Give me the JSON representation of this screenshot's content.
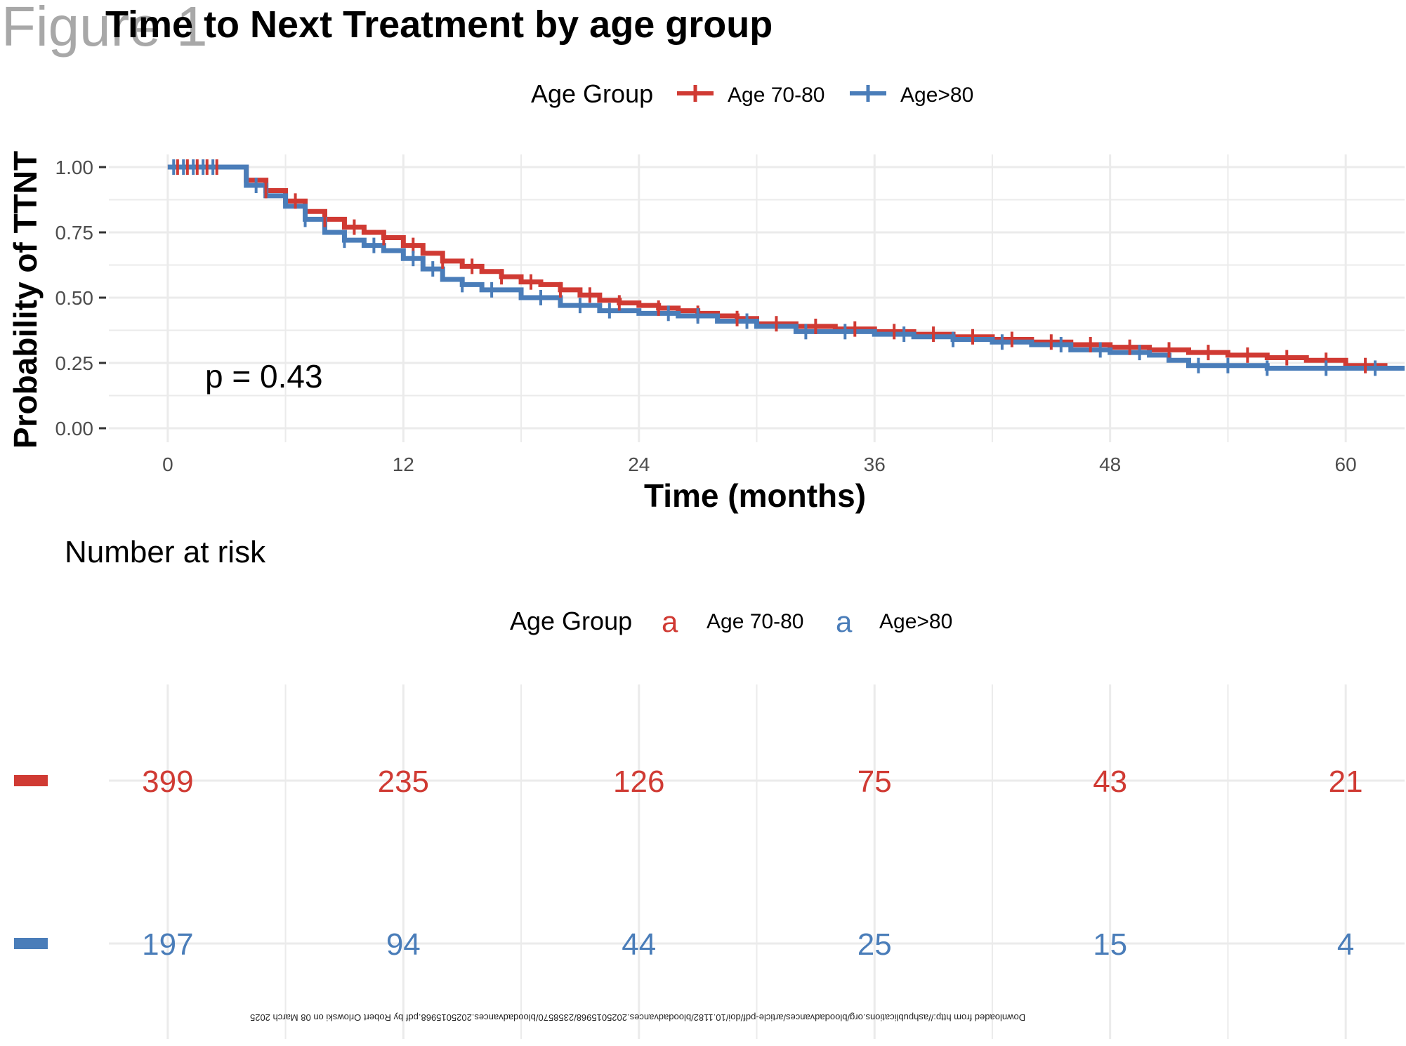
{
  "figure_label": "Figure 1",
  "title": "Time to Next Treatment by age group",
  "colors": {
    "age_70_80": "#d03a33",
    "age_gt_80": "#4a7db9",
    "grid": "#ebebeb"
  },
  "chart_data": [
    {
      "type": "line",
      "subtype": "kaplan-meier",
      "xlabel": "Time (months)",
      "ylabel": "Probability of TTNT",
      "xlim": [
        -3,
        63
      ],
      "ylim": [
        0,
        1
      ],
      "xticks": [
        0,
        12,
        24,
        36,
        48,
        60
      ],
      "yticks": [
        0.0,
        0.25,
        0.5,
        0.75,
        1.0
      ],
      "ytick_labels": [
        "0.00",
        "0.25",
        "0.50",
        "0.75",
        "1.00"
      ],
      "grid": true,
      "legend_title": "Age Group",
      "legend_position": "top",
      "annotation": "p = 0.43",
      "series": [
        {
          "name": "Age 70-80",
          "color": "#d03a33",
          "x": [
            0,
            3,
            4,
            5,
            6,
            7,
            8,
            9,
            10,
            11,
            12,
            13,
            14,
            15,
            16,
            17,
            18,
            19,
            20,
            21,
            22,
            23,
            24,
            25,
            26,
            27,
            28,
            29,
            30,
            32,
            34,
            36,
            38,
            40,
            42,
            44,
            46,
            48,
            50,
            52,
            54,
            56,
            58,
            60,
            62
          ],
          "y": [
            1.0,
            1.0,
            0.95,
            0.91,
            0.87,
            0.83,
            0.8,
            0.77,
            0.75,
            0.73,
            0.7,
            0.67,
            0.64,
            0.62,
            0.6,
            0.58,
            0.56,
            0.55,
            0.53,
            0.51,
            0.49,
            0.48,
            0.47,
            0.46,
            0.45,
            0.44,
            0.43,
            0.42,
            0.4,
            0.39,
            0.38,
            0.37,
            0.36,
            0.35,
            0.34,
            0.33,
            0.32,
            0.31,
            0.3,
            0.29,
            0.28,
            0.27,
            0.26,
            0.24,
            0.23
          ],
          "censor_x": [
            0.5,
            1,
            1.5,
            2,
            2.5,
            5,
            6.5,
            8,
            9.5,
            11,
            12.5,
            14,
            15.5,
            17,
            18.5,
            20,
            21.5,
            23,
            25,
            27,
            29,
            31,
            33,
            35,
            37,
            39,
            41,
            43,
            45,
            47,
            49,
            51,
            53,
            55,
            57,
            59,
            61
          ]
        },
        {
          "name": "Age>80",
          "color": "#4a7db9",
          "x": [
            0,
            3,
            4,
            5,
            6,
            7,
            8,
            9,
            10,
            11,
            12,
            13,
            14,
            15,
            16,
            18,
            20,
            22,
            24,
            26,
            28,
            30,
            32,
            34,
            36,
            38,
            40,
            42,
            44,
            46,
            48,
            50,
            51,
            52,
            54,
            56,
            58,
            60,
            62
          ],
          "y": [
            1.0,
            1.0,
            0.93,
            0.89,
            0.85,
            0.8,
            0.75,
            0.72,
            0.7,
            0.68,
            0.65,
            0.61,
            0.57,
            0.55,
            0.53,
            0.5,
            0.47,
            0.45,
            0.44,
            0.43,
            0.41,
            0.39,
            0.37,
            0.37,
            0.36,
            0.35,
            0.34,
            0.33,
            0.32,
            0.3,
            0.29,
            0.28,
            0.26,
            0.24,
            0.24,
            0.23,
            0.23,
            0.23,
            0.23
          ],
          "censor_x": [
            0.3,
            0.8,
            1.3,
            1.8,
            2.3,
            4.5,
            7,
            9,
            10.5,
            12.5,
            13.5,
            15,
            16.5,
            19,
            21,
            22.5,
            25.5,
            27,
            29.5,
            32.5,
            34.5,
            37.5,
            40,
            42.5,
            45.5,
            47.5,
            49.5,
            52.5,
            54,
            56,
            59,
            61.5
          ]
        }
      ]
    },
    {
      "type": "table",
      "title": "Number at risk",
      "legend_title": "Age Group",
      "legend_glyph": "a",
      "legend_position": "top",
      "x": [
        0,
        12,
        24,
        36,
        48,
        60
      ],
      "series": [
        {
          "name": "Age 70-80",
          "color": "#d03a33",
          "values": [
            399,
            235,
            126,
            75,
            43,
            21
          ]
        },
        {
          "name": "Age>80",
          "color": "#4a7db9",
          "values": [
            197,
            94,
            44,
            25,
            15,
            4
          ]
        }
      ]
    }
  ],
  "footer": "Downloaded from http://ashpublications.org/bloodadvances/article-pdf/doi/10.1182/bloodadvances.2025015968/2358570/bloodadvances.2025015968.pdf by Robert Orlowski on 08 March 2025"
}
